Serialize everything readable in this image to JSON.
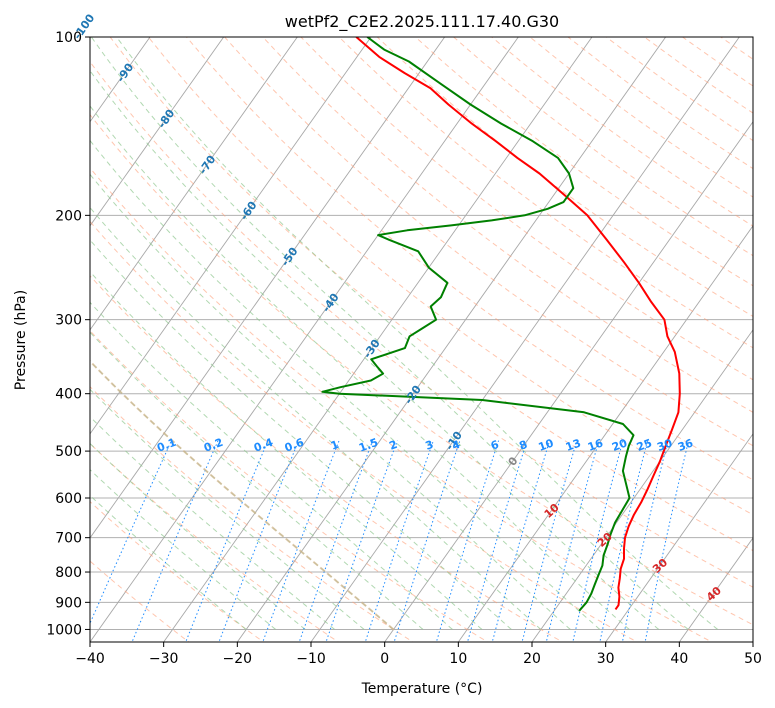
{
  "chart_data": {
    "type": "line",
    "subtype": "skew-T log-P diagram",
    "title": "wetPf2_C2E2.2025.111.17.40.G30",
    "xlabel": "Temperature (°C)",
    "ylabel": "Pressure (hPa)",
    "xlim": [
      -40,
      50
    ],
    "ylim_hpa": [
      1050,
      100
    ],
    "y_scale": "log",
    "x_ticks": [
      "−40",
      "−30",
      "−20",
      "−10",
      "0",
      "10",
      "20",
      "30",
      "40",
      "50"
    ],
    "y_ticks": [
      "100",
      "200",
      "300",
      "400",
      "500",
      "600",
      "700",
      "800",
      "900",
      "1000"
    ],
    "grid": true,
    "colors": {
      "temperature": "#ff0000",
      "dewpoint": "#008000",
      "dry_adiabats": "#ffa07a",
      "moist_adiabats": "#90c890",
      "mixing_ratio": "#1e8cff",
      "isotherms": "#888888",
      "isotherm_labels": "#1f77b4",
      "dry_adiabat_labels": "#d62728",
      "freezing_line": "#d2b48c"
    },
    "series": [
      {
        "name": "Temperature",
        "points": [
          [
            28.2,
            925
          ],
          [
            28.2,
            910
          ],
          [
            27.5,
            880
          ],
          [
            26.5,
            850
          ],
          [
            25.8,
            820
          ],
          [
            25.0,
            790
          ],
          [
            24.5,
            760
          ],
          [
            23.5,
            730
          ],
          [
            22.6,
            700
          ],
          [
            22.0,
            670
          ],
          [
            21.6,
            640
          ],
          [
            21.4,
            610
          ],
          [
            21.0,
            580
          ],
          [
            20.5,
            550
          ],
          [
            20.0,
            520
          ],
          [
            19.3,
            490
          ],
          [
            18.6,
            460
          ],
          [
            17.8,
            430
          ],
          [
            16.2,
            400
          ],
          [
            14.2,
            370
          ],
          [
            11.5,
            340
          ],
          [
            9.0,
            320
          ],
          [
            7.0,
            300
          ],
          [
            3.5,
            280
          ],
          [
            0.0,
            260
          ],
          [
            -4.0,
            240
          ],
          [
            -8.5,
            220
          ],
          [
            -13.5,
            200
          ],
          [
            -18.5,
            185
          ],
          [
            -24.0,
            170
          ],
          [
            -28.5,
            160
          ],
          [
            -33.0,
            150
          ],
          [
            -38.0,
            140
          ],
          [
            -43.0,
            130
          ],
          [
            -47.0,
            122
          ],
          [
            -52.0,
            115
          ],
          [
            -57.0,
            108
          ],
          [
            -62.0,
            100
          ]
        ]
      },
      {
        "name": "Dewpoint",
        "points": [
          [
            23.4,
            930
          ],
          [
            23.6,
            900
          ],
          [
            23.4,
            870
          ],
          [
            23.0,
            840
          ],
          [
            22.6,
            810
          ],
          [
            22.2,
            780
          ],
          [
            21.4,
            750
          ],
          [
            20.9,
            720
          ],
          [
            20.3,
            690
          ],
          [
            19.8,
            660
          ],
          [
            19.6,
            630
          ],
          [
            19.4,
            600
          ],
          [
            17.7,
            570
          ],
          [
            15.9,
            540
          ],
          [
            14.9,
            510
          ],
          [
            14.3,
            490
          ],
          [
            13.9,
            470
          ],
          [
            11.4,
            450
          ],
          [
            5.0,
            430
          ],
          [
            -10.0,
            410
          ],
          [
            -30.0,
            400
          ],
          [
            -32.5,
            397
          ],
          [
            -30.5,
            390
          ],
          [
            -27.0,
            380
          ],
          [
            -26.0,
            370
          ],
          [
            -27.5,
            360
          ],
          [
            -29.0,
            350
          ],
          [
            -25.5,
            335
          ],
          [
            -26.0,
            320
          ],
          [
            -25.0,
            310
          ],
          [
            -24.0,
            300
          ],
          [
            -26.0,
            285
          ],
          [
            -25.5,
            275
          ],
          [
            -26.0,
            260
          ],
          [
            -30.0,
            245
          ],
          [
            -33.0,
            230
          ],
          [
            -38.0,
            220
          ],
          [
            -40.0,
            216
          ],
          [
            -36.5,
            212
          ],
          [
            -31.0,
            208
          ],
          [
            -26.0,
            204
          ],
          [
            -22.0,
            200
          ],
          [
            -19.5,
            195
          ],
          [
            -18.0,
            190
          ],
          [
            -18.0,
            180
          ],
          [
            -20.0,
            170
          ],
          [
            -23.0,
            160
          ],
          [
            -28.0,
            150
          ],
          [
            -34.0,
            140
          ],
          [
            -40.0,
            130
          ],
          [
            -46.0,
            120
          ],
          [
            -52.5,
            110
          ],
          [
            -57.0,
            105
          ],
          [
            -60.5,
            100
          ]
        ]
      }
    ],
    "isotherm_labels": [
      "-100",
      "-90",
      "-80",
      "-70",
      "-60",
      "-50",
      "-40",
      "-30",
      "-20",
      "-10",
      "0"
    ],
    "dry_adiabat_labels": [
      "10",
      "20",
      "30",
      "40"
    ],
    "mixing_ratio_labels": [
      "0.1",
      "0.2",
      "0.4",
      "0.6",
      "1",
      "1.5",
      "2",
      "3",
      "4",
      "6",
      "8",
      "10",
      "13",
      "16",
      "20",
      "25",
      "30",
      "36"
    ]
  }
}
